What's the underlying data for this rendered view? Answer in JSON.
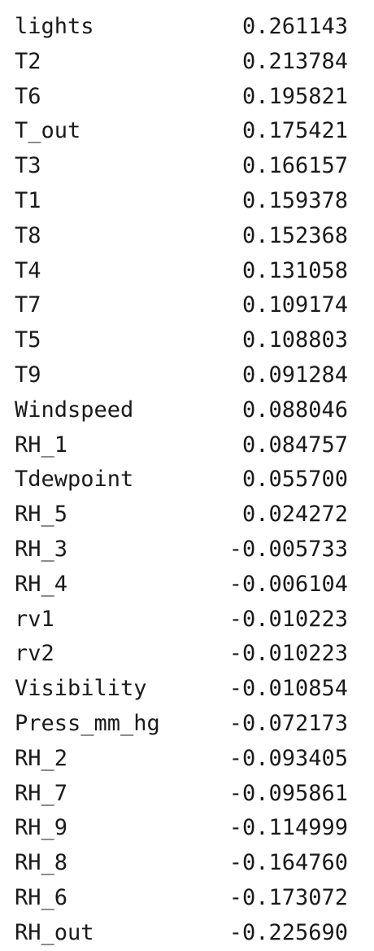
{
  "rows": [
    {
      "label": "lights",
      "value": "0.261143"
    },
    {
      "label": "T2",
      "value": "0.213784"
    },
    {
      "label": "T6",
      "value": "0.195821"
    },
    {
      "label": "T_out",
      "value": "0.175421"
    },
    {
      "label": "T3",
      "value": "0.166157"
    },
    {
      "label": "T1",
      "value": "0.159378"
    },
    {
      "label": "T8",
      "value": "0.152368"
    },
    {
      "label": "T4",
      "value": "0.131058"
    },
    {
      "label": "T7",
      "value": "0.109174"
    },
    {
      "label": "T5",
      "value": "0.108803"
    },
    {
      "label": "T9",
      "value": "0.091284"
    },
    {
      "label": "Windspeed",
      "value": "0.088046"
    },
    {
      "label": "RH_1",
      "value": "0.084757"
    },
    {
      "label": "Tdewpoint",
      "value": "0.055700"
    },
    {
      "label": "RH_5",
      "value": "0.024272"
    },
    {
      "label": "RH_3",
      "value": "-0.005733"
    },
    {
      "label": "RH_4",
      "value": "-0.006104"
    },
    {
      "label": "rv1",
      "value": "-0.010223"
    },
    {
      "label": "rv2",
      "value": "-0.010223"
    },
    {
      "label": "Visibility",
      "value": "-0.010854"
    },
    {
      "label": "Press_mm_hg",
      "value": "-0.072173"
    },
    {
      "label": "RH_2",
      "value": "-0.093405"
    },
    {
      "label": "RH_7",
      "value": "-0.095861"
    },
    {
      "label": "RH_9",
      "value": "-0.114999"
    },
    {
      "label": "RH_8",
      "value": "-0.164760"
    },
    {
      "label": "RH_6",
      "value": "-0.173072"
    },
    {
      "label": "RH_out",
      "value": "-0.225690"
    }
  ]
}
